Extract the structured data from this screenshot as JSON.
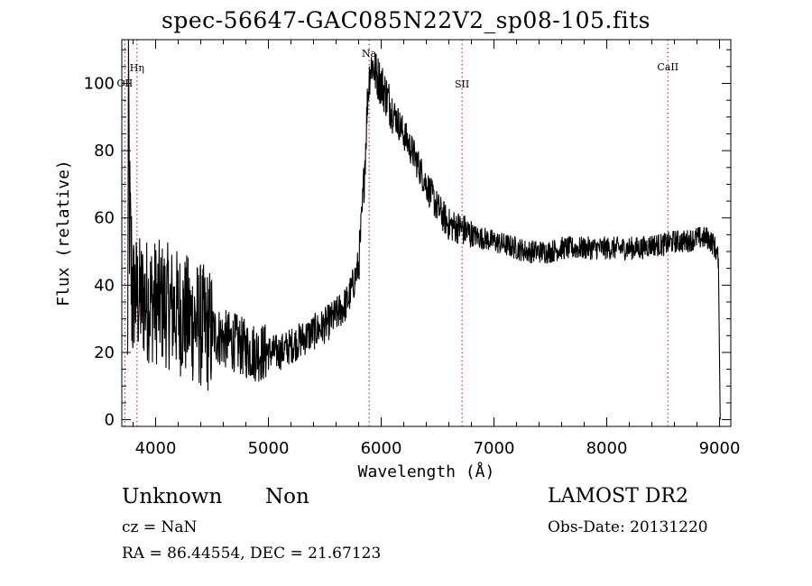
{
  "chart_data": {
    "type": "line",
    "title": "spec-56647-GAC085N22V2_sp08-105.fits",
    "xlabel": "Wavelength (Å)",
    "ylabel": "Flux (relative)",
    "xlim": [
      3700,
      9100
    ],
    "ylim": [
      -2,
      113
    ],
    "xticks": [
      4000,
      5000,
      6000,
      7000,
      8000,
      9000
    ],
    "yticks": [
      0,
      20,
      40,
      60,
      80,
      100
    ],
    "grid": false,
    "line_colors": {
      "spectrum": "#000000",
      "line_marker": "#cc0000"
    },
    "lines": [
      {
        "label": "OII",
        "wavelength": 3727
      },
      {
        "label": "Hη",
        "wavelength": 3835
      },
      {
        "label": "Na",
        "wavelength": 5893
      },
      {
        "label": "SII",
        "wavelength": 6717
      },
      {
        "label": "CaII",
        "wavelength": 8542
      }
    ],
    "series": [
      {
        "x": [
          3750,
          3760,
          3770,
          3780,
          3800,
          3850,
          3900,
          4000,
          4100,
          4200,
          4300,
          4400,
          4500,
          4600,
          4700,
          4800,
          4900,
          5000,
          5100,
          5200,
          5300,
          5400,
          5500,
          5600,
          5700,
          5750,
          5800,
          5830,
          5860,
          5880,
          5900,
          5920,
          5950,
          6000,
          6050,
          6100,
          6200,
          6300,
          6400,
          6500,
          6600,
          6700,
          6800,
          6900,
          7000,
          7100,
          7200,
          7300,
          7400,
          7500,
          7600,
          7700,
          7800,
          7900,
          8000,
          8100,
          8200,
          8300,
          8400,
          8500,
          8600,
          8700,
          8800,
          8900,
          8950,
          8990
        ],
        "y": [
          10,
          95,
          55,
          45,
          38,
          36,
          36,
          35,
          34,
          32,
          30,
          28,
          26,
          24,
          23,
          21,
          20,
          20,
          20,
          22,
          24,
          26,
          28,
          31,
          35,
          40,
          46,
          60,
          80,
          96,
          104,
          106,
          103,
          100,
          96,
          92,
          85,
          78,
          70,
          63,
          58,
          57,
          55,
          54,
          53,
          52,
          51,
          50,
          50,
          50,
          51,
          51,
          51,
          51,
          51,
          51,
          51,
          51,
          52,
          52,
          53,
          53,
          54,
          54,
          52,
          48
        ]
      }
    ]
  },
  "footer": {
    "object_class": "Unknown",
    "object_subclass": "Non",
    "survey": "LAMOST DR2",
    "cz": "cz = NaN",
    "obs_date": "Obs-Date: 20131220",
    "radec": "RA =  86.44554, DEC =  21.67123"
  }
}
